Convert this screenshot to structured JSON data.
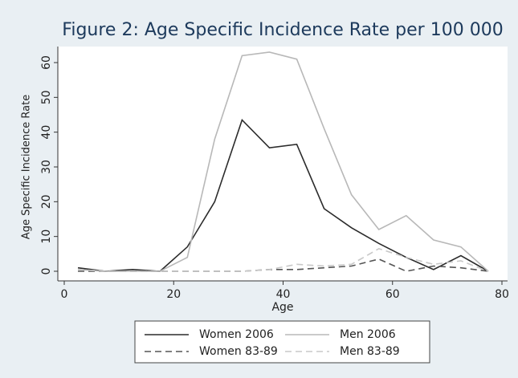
{
  "chart_data": {
    "type": "line",
    "title": "Figure 2: Age Specific Incidence Rate per 100 000",
    "x_label": "Age",
    "y_label": "Age Specific Incidence Rate",
    "x": [
      2.5,
      7.5,
      12.5,
      17.5,
      22.5,
      27.5,
      32.5,
      37.5,
      42.5,
      47.5,
      52.5,
      57.5,
      62.5,
      67.5,
      72.5,
      77.5
    ],
    "series": [
      {
        "name": "Women 2006",
        "color": "#2b2b2b",
        "style": "solid",
        "values": [
          1,
          0,
          0.5,
          0,
          7,
          20,
          43.5,
          35.5,
          36.5,
          18,
          12.5,
          8,
          4,
          0.5,
          4.5,
          0
        ]
      },
      {
        "name": "Men 2006",
        "color": "#b8b8b8",
        "style": "solid",
        "values": [
          0.5,
          0,
          0,
          0,
          4,
          38,
          62,
          63,
          61,
          41,
          22,
          12,
          16,
          9,
          7,
          0
        ]
      },
      {
        "name": "Women 83-89",
        "color": "#555555",
        "style": "dashed",
        "values": [
          0,
          0,
          0,
          0,
          0,
          0,
          0,
          0.5,
          0.5,
          1,
          1.5,
          3.5,
          0,
          1.5,
          1,
          0
        ]
      },
      {
        "name": "Men 83-89",
        "color": "#c8c8c8",
        "style": "dashed",
        "values": [
          0.5,
          0,
          0,
          0,
          0,
          0,
          0,
          0.5,
          2,
          1.5,
          2,
          6.5,
          4,
          2,
          3,
          0
        ]
      }
    ],
    "xlim": [
      0,
      80
    ],
    "xticks": [
      0,
      20,
      40,
      60,
      80
    ],
    "ylim": [
      0,
      60
    ],
    "yticks": [
      0,
      10,
      20,
      30,
      40,
      50,
      60
    ],
    "legend": "bottom"
  }
}
